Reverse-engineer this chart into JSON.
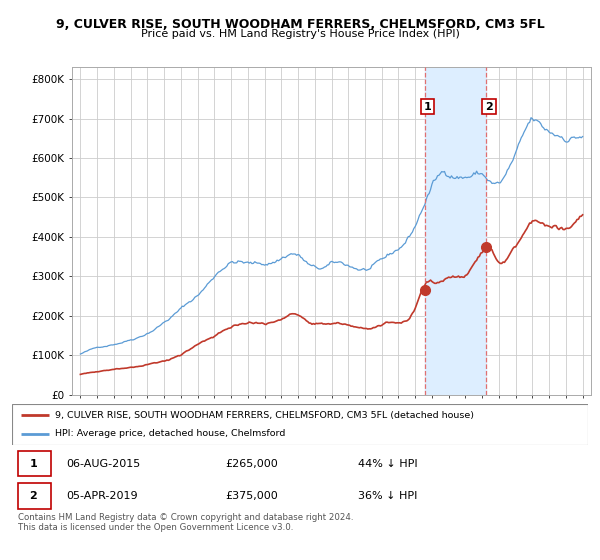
{
  "title_line1": "9, CULVER RISE, SOUTH WOODHAM FERRERS, CHELMSFORD, CM3 5FL",
  "title_line2": "Price paid vs. HM Land Registry's House Price Index (HPI)",
  "ylim": [
    0,
    830000
  ],
  "yticks": [
    0,
    100000,
    200000,
    300000,
    400000,
    500000,
    600000,
    700000,
    800000
  ],
  "ytick_labels": [
    "£0",
    "£100K",
    "£200K",
    "£300K",
    "£400K",
    "£500K",
    "£600K",
    "£700K",
    "£800K"
  ],
  "xlim_start": 1994.5,
  "xlim_end": 2025.5,
  "xtick_years": [
    1995,
    1996,
    1997,
    1998,
    1999,
    2000,
    2001,
    2002,
    2003,
    2004,
    2005,
    2006,
    2007,
    2008,
    2009,
    2010,
    2011,
    2012,
    2013,
    2014,
    2015,
    2016,
    2017,
    2018,
    2019,
    2020,
    2021,
    2022,
    2023,
    2024,
    2025
  ],
  "hpi_color": "#5b9bd5",
  "price_color": "#c0392b",
  "shade_color": "#ddeeff",
  "sale1_x": 2015.58,
  "sale1_y": 265000,
  "sale2_x": 2019.25,
  "sale2_y": 375000,
  "sale1_label": "1",
  "sale2_label": "2",
  "vline_color": "#e07070",
  "label_box_color": "#c00000",
  "legend_label_red": "9, CULVER RISE, SOUTH WOODHAM FERRERS, CHELMSFORD, CM3 5FL (detached house)",
  "legend_label_blue": "HPI: Average price, detached house, Chelmsford",
  "table_row1": [
    "1",
    "06-AUG-2015",
    "£265,000",
    "44% ↓ HPI"
  ],
  "table_row2": [
    "2",
    "05-APR-2019",
    "£375,000",
    "36% ↓ HPI"
  ],
  "footnote": "Contains HM Land Registry data © Crown copyright and database right 2024.\nThis data is licensed under the Open Government Licence v3.0."
}
